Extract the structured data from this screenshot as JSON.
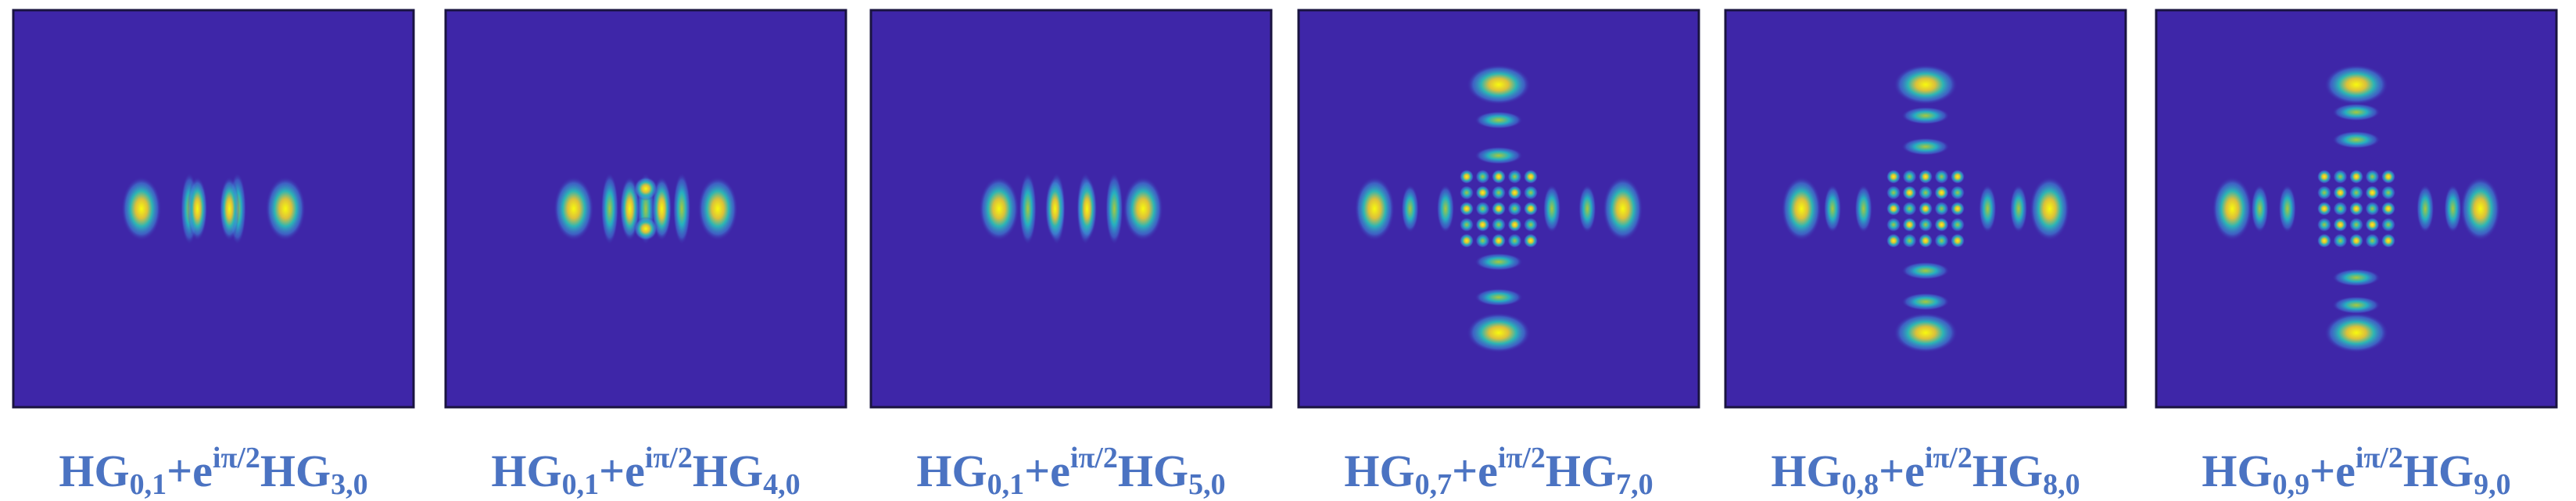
{
  "panels": [
    {
      "caption": {
        "base1": "HG",
        "sub1": "0,1",
        "plus": "+e",
        "sup": "iπ/2",
        "base2": "HG",
        "sub2": "3,0"
      }
    },
    {
      "caption": {
        "base1": "HG",
        "sub1": "0,1",
        "plus": "+e",
        "sup": "iπ/2",
        "base2": "HG",
        "sub2": "4,0"
      }
    },
    {
      "caption": {
        "base1": "HG",
        "sub1": "0,1",
        "plus": "+e",
        "sup": "iπ/2",
        "base2": "HG",
        "sub2": "5,0"
      }
    },
    {
      "caption": {
        "base1": "HG",
        "sub1": "0,7",
        "plus": "+e",
        "sup": "iπ/2",
        "base2": "HG",
        "sub2": "7,0"
      }
    },
    {
      "caption": {
        "base1": "HG",
        "sub1": "0,8",
        "plus": "+e",
        "sup": "iπ/2",
        "base2": "HG",
        "sub2": "8,0"
      }
    },
    {
      "caption": {
        "base1": "HG",
        "sub1": "0,9",
        "plus": "+e",
        "sup": "iπ/2",
        "base2": "HG",
        "sub2": "9,0"
      }
    }
  ]
}
